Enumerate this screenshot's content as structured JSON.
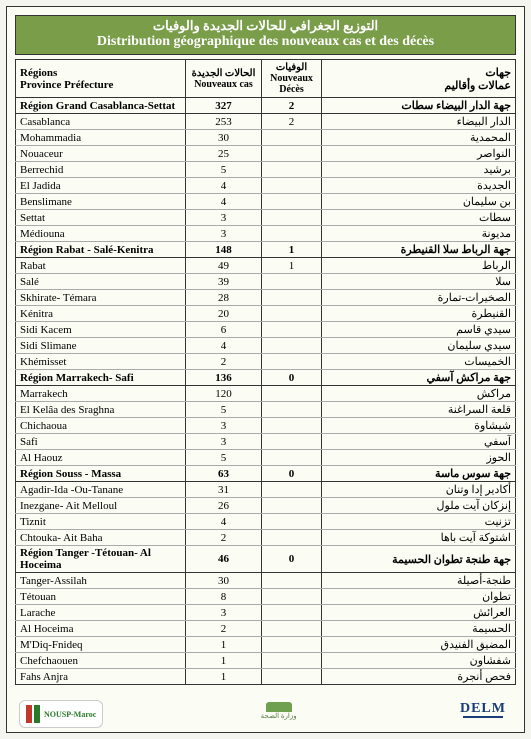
{
  "title": {
    "ar": "التوزيع الجغرافي للحالات الجديدة والوفيات",
    "fr": "Distribution géographique des nouveaux cas et des décès"
  },
  "headers": {
    "region_fr": "Régions",
    "region_fr2": "Province Préfecture",
    "cases_ar": "الحالات الجديدة",
    "cases_fr": "Nouveaux cas",
    "deaths_ar": "الوفيات",
    "deaths_fr": "Nouveaux Décès",
    "region_ar": "جهات",
    "region_ar2": "عمالات وأقاليم"
  },
  "rows": [
    {
      "type": "region",
      "fr": "Région Grand Casablanca-Settat",
      "cases": "327",
      "deaths": "2",
      "ar": "جهة الدار البيضاء سطات"
    },
    {
      "type": "data",
      "fr": "Casablanca",
      "cases": "253",
      "deaths": "2",
      "ar": "الدار البيضاء"
    },
    {
      "type": "data",
      "fr": "Mohammadia",
      "cases": "30",
      "deaths": "",
      "ar": "المحمدية"
    },
    {
      "type": "data",
      "fr": "Nouaceur",
      "cases": "25",
      "deaths": "",
      "ar": "النواصر"
    },
    {
      "type": "data",
      "fr": "Berrechid",
      "cases": "5",
      "deaths": "",
      "ar": "برشيد"
    },
    {
      "type": "data",
      "fr": "El Jadida",
      "cases": "4",
      "deaths": "",
      "ar": "الجديدة"
    },
    {
      "type": "data",
      "fr": "Benslimane",
      "cases": "4",
      "deaths": "",
      "ar": "بن سليمان"
    },
    {
      "type": "data",
      "fr": "Settat",
      "cases": "3",
      "deaths": "",
      "ar": "سطات"
    },
    {
      "type": "data",
      "fr": "Médiouna",
      "cases": "3",
      "deaths": "",
      "ar": "مديونة"
    },
    {
      "type": "region",
      "fr": "Région Rabat - Salé-Kenitra",
      "cases": "148",
      "deaths": "1",
      "ar": "جهة الرباط سلا القنيطرة"
    },
    {
      "type": "data",
      "fr": "Rabat",
      "cases": "49",
      "deaths": "1",
      "ar": "الرباط"
    },
    {
      "type": "data",
      "fr": "Salé",
      "cases": "39",
      "deaths": "",
      "ar": "سلا"
    },
    {
      "type": "data",
      "fr": "Skhirate- Témara",
      "cases": "28",
      "deaths": "",
      "ar": "الصخيرات-تمارة"
    },
    {
      "type": "data",
      "fr": "Kénitra",
      "cases": "20",
      "deaths": "",
      "ar": "القنيطرة"
    },
    {
      "type": "data",
      "fr": "Sidi Kacem",
      "cases": "6",
      "deaths": "",
      "ar": "سيدي قاسم"
    },
    {
      "type": "data",
      "fr": "Sidi Slimane",
      "cases": "4",
      "deaths": "",
      "ar": "سيدي سليمان"
    },
    {
      "type": "data",
      "fr": "Khémisset",
      "cases": "2",
      "deaths": "",
      "ar": "الخميسات"
    },
    {
      "type": "region",
      "fr": "Région Marrakech- Safi",
      "cases": "136",
      "deaths": "0",
      "ar": "جهة مراكش آسفي"
    },
    {
      "type": "data",
      "fr": "Marrakech",
      "cases": "120",
      "deaths": "",
      "ar": "مراكش"
    },
    {
      "type": "data",
      "fr": "El Kelâa des  Sraghna",
      "cases": "5",
      "deaths": "",
      "ar": "قلعة السراغنة"
    },
    {
      "type": "data",
      "fr": "Chichaoua",
      "cases": "3",
      "deaths": "",
      "ar": "شيشاوة"
    },
    {
      "type": "data",
      "fr": "Safi",
      "cases": "3",
      "deaths": "",
      "ar": "آسفي"
    },
    {
      "type": "data",
      "fr": "Al  Haouz",
      "cases": "5",
      "deaths": "",
      "ar": "الحوز"
    },
    {
      "type": "region",
      "fr": "Région Souss - Massa",
      "cases": "63",
      "deaths": "0",
      "ar": "جهة سوس ماسة"
    },
    {
      "type": "data",
      "fr": "Agadir-Ida -Ou-Tanane",
      "cases": "31",
      "deaths": "",
      "ar": "أكادير إدا وتنان"
    },
    {
      "type": "data",
      "fr": "Inezgane- Ait Melloul",
      "cases": "26",
      "deaths": "",
      "ar": "إنزكان آيت ملول"
    },
    {
      "type": "data",
      "fr": "Tiznit",
      "cases": "4",
      "deaths": "",
      "ar": "تزنيت"
    },
    {
      "type": "data",
      "fr": "Chtouka- Ait Baha",
      "cases": "2",
      "deaths": "",
      "ar": "اشتوكة آيت باها"
    },
    {
      "type": "region",
      "fr": "Région Tanger -Tétouan- Al Hoceima",
      "cases": "46",
      "deaths": "0",
      "ar": "جهة طنجة تطوان الحسيمة"
    },
    {
      "type": "data",
      "fr": "Tanger-Assilah",
      "cases": "30",
      "deaths": "",
      "ar": "طنجة-أصيلة"
    },
    {
      "type": "data",
      "fr": "Tétouan",
      "cases": "8",
      "deaths": "",
      "ar": "تطوان"
    },
    {
      "type": "data",
      "fr": "Larache",
      "cases": "3",
      "deaths": "",
      "ar": "العرائش"
    },
    {
      "type": "data",
      "fr": "Al Hoceima",
      "cases": "2",
      "deaths": "",
      "ar": "الحسيمة"
    },
    {
      "type": "data",
      "fr": "M'Diq-Fnideq",
      "cases": "1",
      "deaths": "",
      "ar": "المضيق الفنيدق"
    },
    {
      "type": "data",
      "fr": "Chefchaouen",
      "cases": "1",
      "deaths": "",
      "ar": "شفشاون"
    },
    {
      "type": "data",
      "fr": "Fahs Anjra",
      "cases": "1",
      "deaths": "",
      "ar": "فحص أنجرة"
    }
  ],
  "footer": {
    "onsp": "NOUSP-Maroc",
    "center": "وزارة الصحة",
    "delm": "DELM"
  },
  "colors": {
    "header_bg": "#7a9d4a",
    "page_bg": "#fbfcf4",
    "border": "#333333"
  }
}
